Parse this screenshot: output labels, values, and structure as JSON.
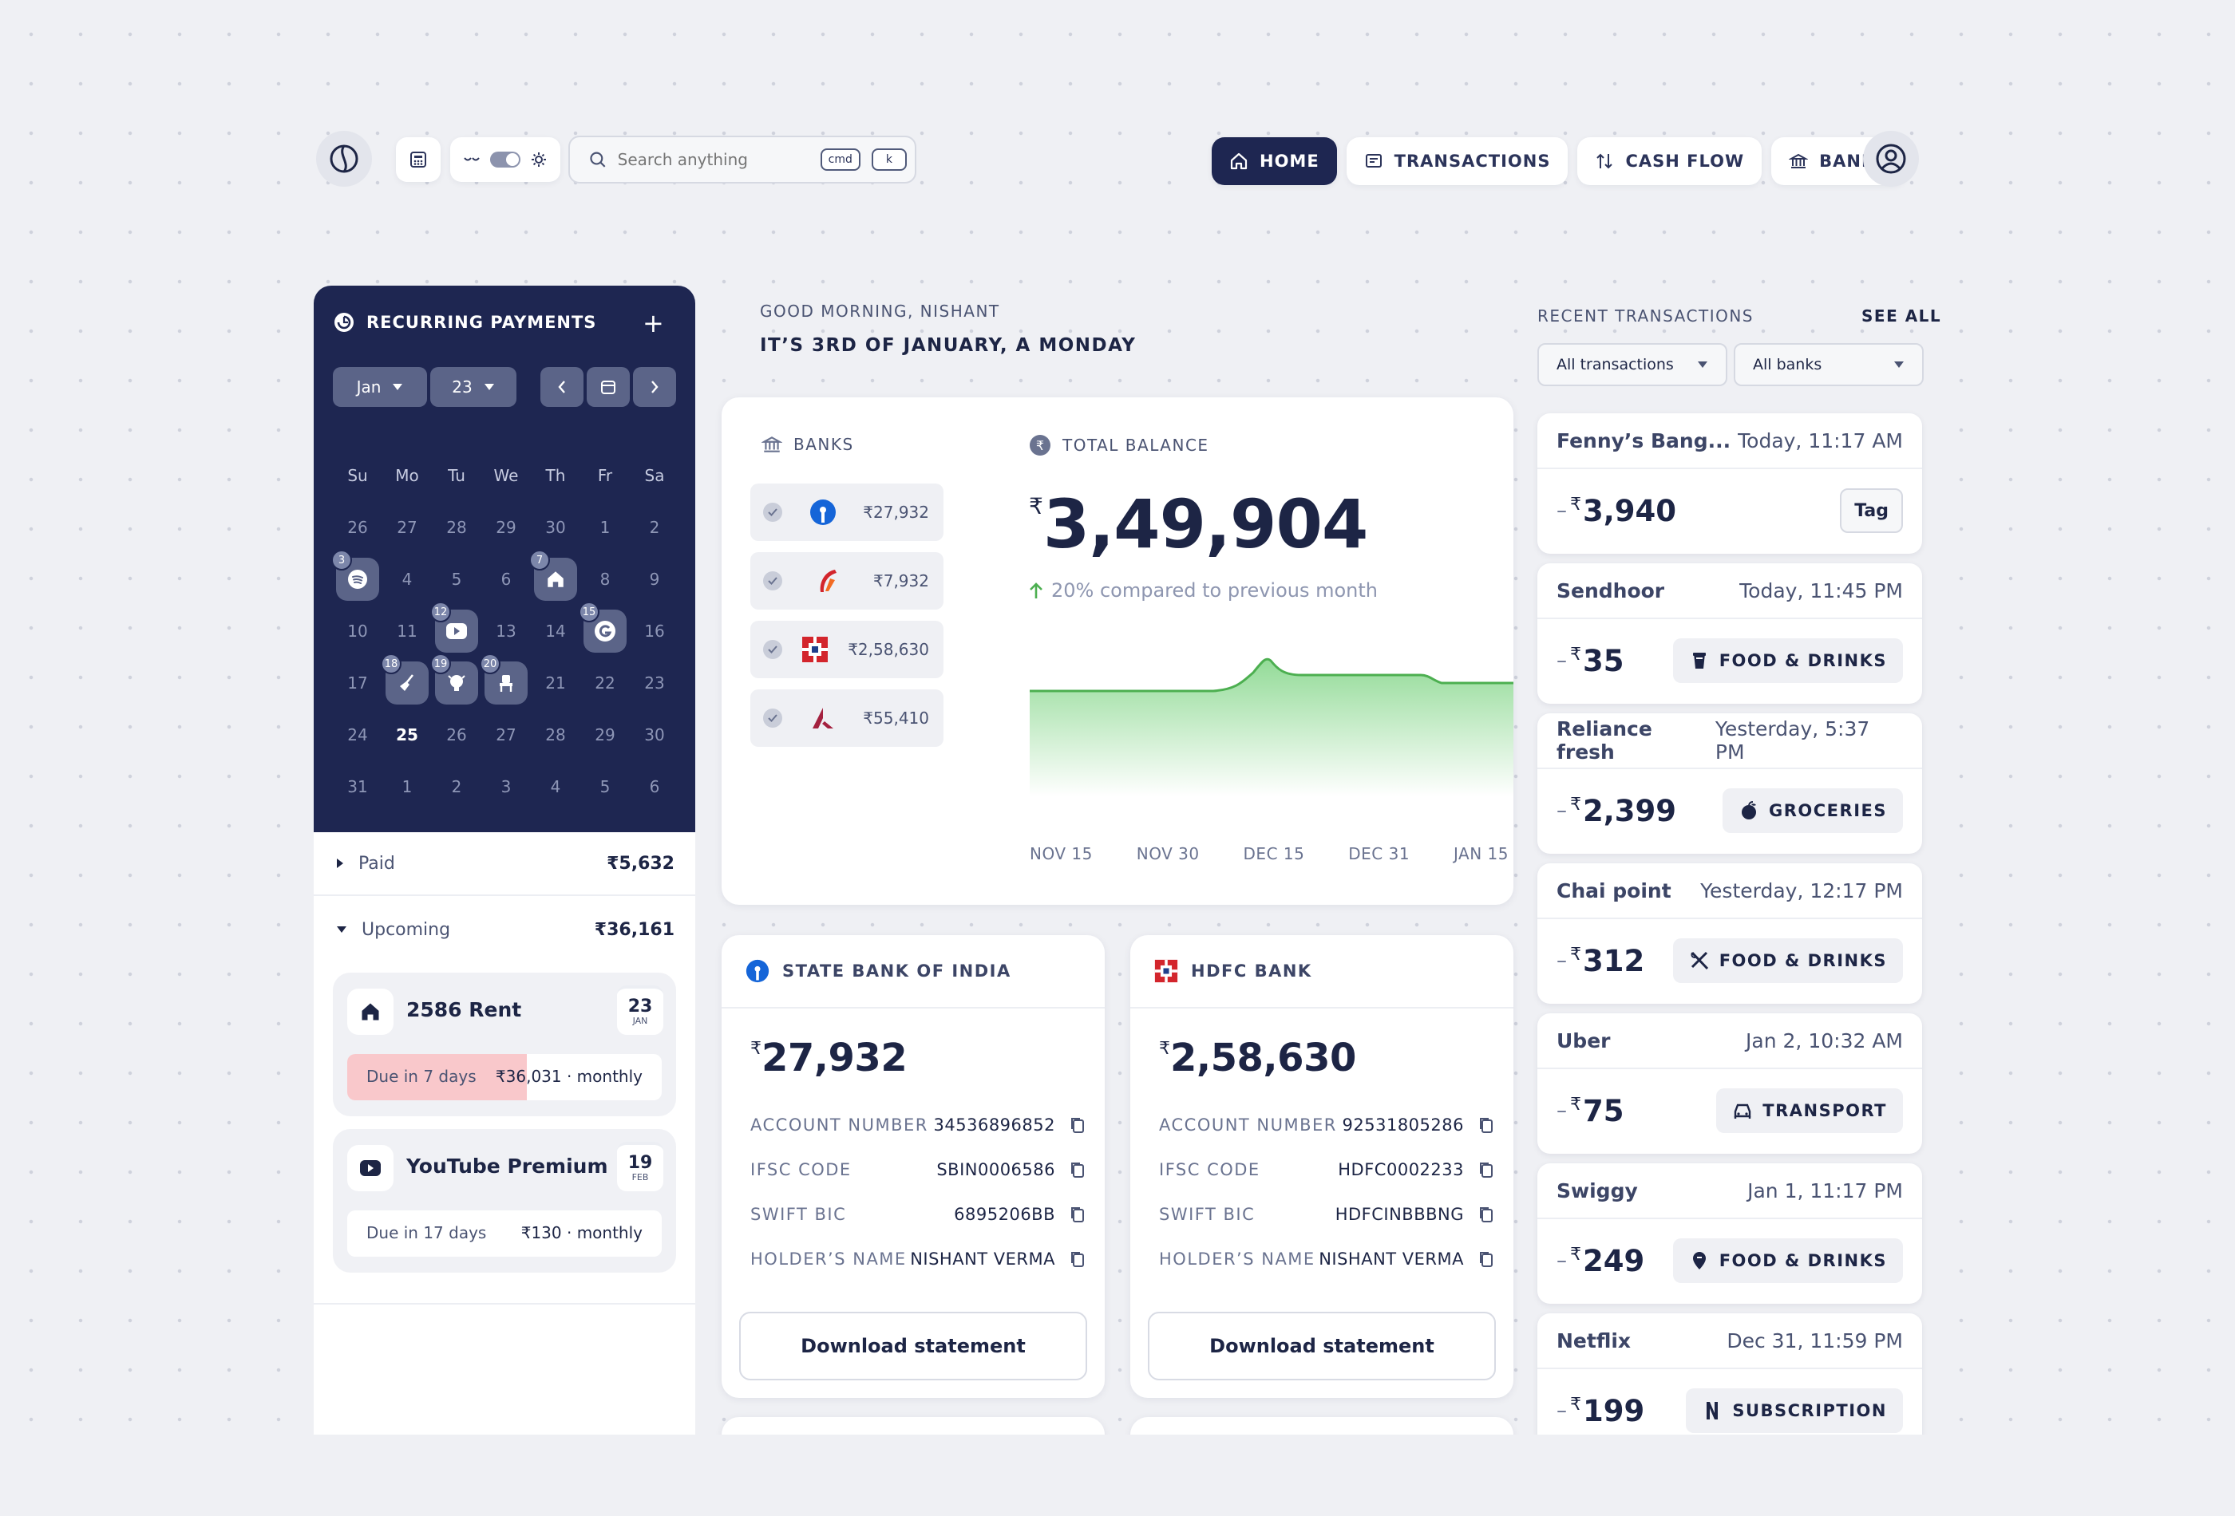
{
  "topbar": {
    "search_placeholder": "Search anything",
    "kbd_cmd": "cmd",
    "kbd_k": "k",
    "nav": [
      {
        "label": "HOME",
        "icon": "home-icon",
        "active": true
      },
      {
        "label": "TRANSACTIONS",
        "icon": "receipt-icon",
        "active": false
      },
      {
        "label": "CASH FLOW",
        "icon": "cash-flow-icon",
        "active": false
      },
      {
        "label": "BANKS",
        "icon": "bank-icon",
        "active": false
      }
    ]
  },
  "recurring": {
    "title": "RECURRING PAYMENTS",
    "month": "Jan",
    "year": "23",
    "weekdays": [
      "Su",
      "Mo",
      "Tu",
      "We",
      "Th",
      "Fr",
      "Sa"
    ],
    "days": [
      "26",
      "27",
      "28",
      "29",
      "30",
      "1",
      "2",
      "3",
      "4",
      "5",
      "6",
      "7",
      "8",
      "9",
      "10",
      "11",
      "12",
      "13",
      "14",
      "15",
      "16",
      "17",
      "18",
      "19",
      "20",
      "21",
      "22",
      "23",
      "24",
      "25",
      "26",
      "27",
      "28",
      "29",
      "30",
      "31",
      "1",
      "2",
      "3",
      "4",
      "5",
      "6"
    ],
    "today": "25",
    "events": {
      "3": "spotify-icon",
      "7": "home-icon",
      "12": "youtube-icon",
      "15": "google-icon",
      "18": "broom-icon",
      "19": "bulb-icon",
      "20": "chair-icon"
    },
    "paid_label": "Paid",
    "paid_value": "₹5,632",
    "upcoming_label": "Upcoming",
    "upcoming_value": "₹36,161",
    "items": [
      {
        "name": "2586 Rent",
        "day": "23",
        "month": "JAN",
        "due": "Due in 7 days",
        "amount": "₹36,031 · monthly",
        "progress": 0.57
      },
      {
        "name": "YouTube Premium",
        "day": "19",
        "month": "FEB",
        "due": "Due in 17 days",
        "amount": "₹130 · monthly",
        "progress": 0
      }
    ]
  },
  "greeting": {
    "line1": "GOOD MORNING, NISHANT",
    "line2": "IT’S 3RD OF JANUARY, A MONDAY"
  },
  "banks_panel": {
    "title": "BANKS",
    "items": [
      {
        "value": "₹27,932",
        "icon": "sbi-logo-icon",
        "color": "#1565d8"
      },
      {
        "value": "₹7,932",
        "icon": "axis-like-logo-icon",
        "color": "#d3252c"
      },
      {
        "value": "₹2,58,630",
        "icon": "hdfc-logo-icon",
        "color": "#d3252c"
      },
      {
        "value": "₹55,410",
        "icon": "axis-logo-icon",
        "color": "#a4213f"
      }
    ]
  },
  "balance": {
    "title": "TOTAL BALANCE",
    "currency": "₹",
    "amount": "3,49,904",
    "compare": "20% compared to previous month",
    "x_ticks": [
      "NOV 15",
      "NOV 30",
      "DEC 15",
      "DEC 31",
      "JAN 15"
    ],
    "line_color": "#4caf50"
  },
  "accounts": [
    {
      "name": "STATE BANK OF INDIA",
      "icon": "sbi-logo-icon",
      "currency": "₹",
      "balance": "27,932",
      "rows": [
        {
          "k": "ACCOUNT NUMBER",
          "v": "34536896852"
        },
        {
          "k": "IFSC CODE",
          "v": "SBIN0006586"
        },
        {
          "k": "SWIFT BIC",
          "v": "6895206BB"
        },
        {
          "k": "HOLDER’S NAME",
          "v": "NISHANT VERMA"
        }
      ],
      "download": "Download statement"
    },
    {
      "name": "HDFC BANK",
      "icon": "hdfc-logo-icon",
      "currency": "₹",
      "balance": "2,58,630",
      "rows": [
        {
          "k": "ACCOUNT NUMBER",
          "v": "92531805286"
        },
        {
          "k": "IFSC CODE",
          "v": "HDFC0002233"
        },
        {
          "k": "SWIFT BIC",
          "v": "HDFCINBBBNG"
        },
        {
          "k": "HOLDER’S NAME",
          "v": "NISHANT VERMA"
        }
      ],
      "download": "Download statement"
    }
  ],
  "recent": {
    "title": "RECENT TRANSACTIONS",
    "see_all": "SEE ALL",
    "filter1": "All transactions",
    "filter2": "All banks",
    "items": [
      {
        "name": "Fenny’s Bang...",
        "time": "Today, 11:17 AM",
        "amount": "3,940",
        "tag": "Tag",
        "icon": ""
      },
      {
        "name": "Sendhoor",
        "time": "Today, 11:45 PM",
        "amount": "35",
        "tag": "FOOD & DRINKS",
        "icon": "cup-icon"
      },
      {
        "name": "Reliance fresh",
        "time": "Yesterday, 5:37 PM",
        "amount": "2,399",
        "tag": "GROCERIES",
        "icon": "apple-icon"
      },
      {
        "name": "Chai point",
        "time": "Yesterday, 12:17 PM",
        "amount": "312",
        "tag": "FOOD & DRINKS",
        "icon": "cutlery-icon"
      },
      {
        "name": "Uber",
        "time": "Jan 2, 10:32 AM",
        "amount": "75",
        "tag": "TRANSPORT",
        "icon": "car-icon"
      },
      {
        "name": "Swiggy",
        "time": "Jan 1, 11:17 PM",
        "amount": "249",
        "tag": "FOOD & DRINKS",
        "icon": "swiggy-icon"
      },
      {
        "name": "Netflix",
        "time": "Dec 31, 11:59 PM",
        "amount": "199",
        "tag": "SUBSCRIPTION",
        "icon": "netflix-icon"
      }
    ]
  }
}
